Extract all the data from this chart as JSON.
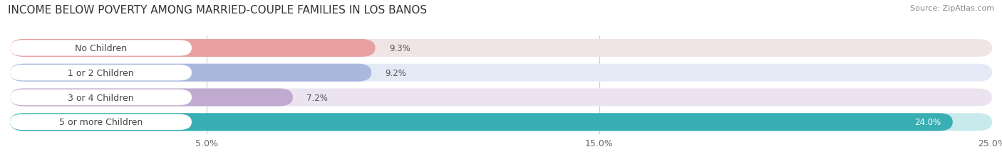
{
  "title": "INCOME BELOW POVERTY AMONG MARRIED-COUPLE FAMILIES IN LOS BANOS",
  "source": "Source: ZipAtlas.com",
  "categories": [
    "No Children",
    "1 or 2 Children",
    "3 or 4 Children",
    "5 or more Children"
  ],
  "values": [
    9.3,
    9.2,
    7.2,
    24.0
  ],
  "bar_colors": [
    "#e8a0a0",
    "#aab8de",
    "#c0aad0",
    "#38afb2"
  ],
  "bg_colors": [
    "#f0e4e4",
    "#e4eaf5",
    "#ebe4f0",
    "#c8eaec"
  ],
  "value_labels": [
    "9.3%",
    "9.2%",
    "7.2%",
    "24.0%"
  ],
  "value_label_colors": [
    "#555555",
    "#555555",
    "#555555",
    "#ffffff"
  ],
  "xlim": [
    0,
    25.0
  ],
  "xticks": [
    5.0,
    15.0,
    25.0
  ],
  "xtick_labels": [
    "5.0%",
    "15.0%",
    "25.0%"
  ],
  "title_fontsize": 11,
  "source_fontsize": 8,
  "bar_label_fontsize": 9,
  "value_fontsize": 8.5,
  "background_color": "#ffffff"
}
